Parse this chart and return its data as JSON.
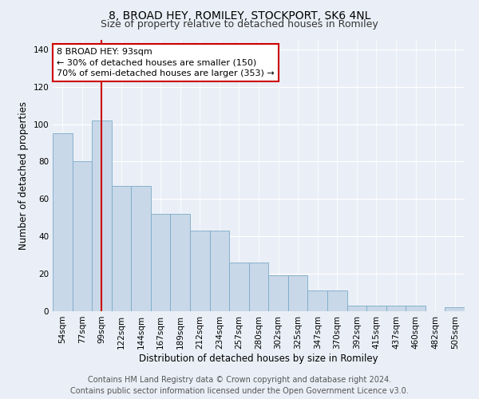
{
  "title": "8, BROAD HEY, ROMILEY, STOCKPORT, SK6 4NL",
  "subtitle": "Size of property relative to detached houses in Romiley",
  "xlabel": "Distribution of detached houses by size in Romiley",
  "ylabel": "Number of detached properties",
  "footer_line1": "Contains HM Land Registry data © Crown copyright and database right 2024.",
  "footer_line2": "Contains public sector information licensed under the Open Government Licence v3.0.",
  "categories": [
    "54sqm",
    "77sqm",
    "99sqm",
    "122sqm",
    "144sqm",
    "167sqm",
    "189sqm",
    "212sqm",
    "234sqm",
    "257sqm",
    "280sqm",
    "302sqm",
    "325sqm",
    "347sqm",
    "370sqm",
    "392sqm",
    "415sqm",
    "437sqm",
    "460sqm",
    "482sqm",
    "505sqm"
  ],
  "values": [
    95,
    80,
    102,
    67,
    67,
    52,
    52,
    43,
    43,
    26,
    26,
    19,
    19,
    11,
    11,
    3,
    3,
    3,
    3,
    0,
    2
  ],
  "bar_color": "#c8d8e8",
  "bar_edge_color": "#7aaac8",
  "annotation_box_text": "8 BROAD HEY: 93sqm\n← 30% of detached houses are smaller (150)\n70% of semi-detached houses are larger (353) →",
  "annotation_box_color": "#ffffff",
  "annotation_box_edge_color": "#cc0000",
  "vline_x_index": 2,
  "vline_color": "#cc0000",
  "ylim": [
    0,
    145
  ],
  "yticks": [
    0,
    20,
    40,
    60,
    80,
    100,
    120,
    140
  ],
  "bg_color": "#eaeff7",
  "grid_color": "#ffffff",
  "title_fontsize": 10,
  "subtitle_fontsize": 9,
  "axis_label_fontsize": 8.5,
  "tick_fontsize": 7.5,
  "footer_fontsize": 7
}
